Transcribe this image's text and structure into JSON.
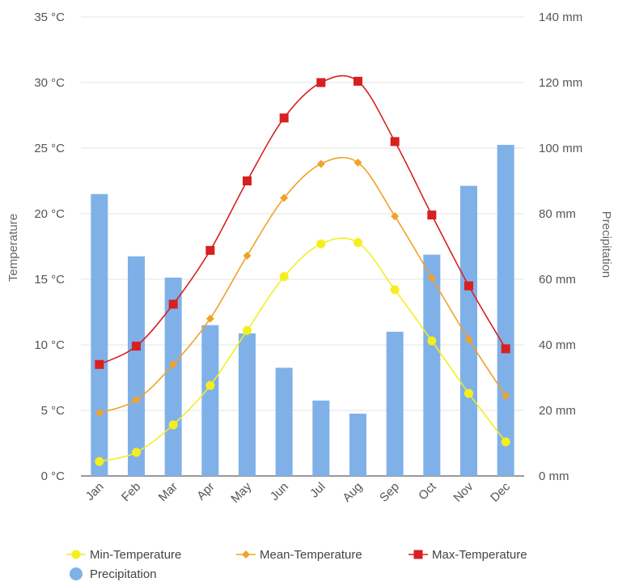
{
  "chart_data": {
    "type": "bar+line",
    "categories": [
      "Jan",
      "Feb",
      "Mar",
      "Apr",
      "May",
      "Jun",
      "Jul",
      "Aug",
      "Sep",
      "Oct",
      "Nov",
      "Dec"
    ],
    "y_left": {
      "label": "Temperature",
      "unit": "°C",
      "range": [
        0,
        35
      ],
      "ticks": [
        0,
        5,
        10,
        15,
        20,
        25,
        30,
        35
      ],
      "tick_labels": [
        "0 °C",
        "5 °C",
        "10 °C",
        "15 °C",
        "20 °C",
        "25 °C",
        "30 °C",
        "35 °C"
      ]
    },
    "y_right": {
      "label": "Precipitation",
      "unit": "mm",
      "range": [
        0,
        140
      ],
      "ticks": [
        0,
        20,
        40,
        60,
        80,
        100,
        120,
        140
      ],
      "tick_labels": [
        "0 mm",
        "20 mm",
        "40 mm",
        "60 mm",
        "80 mm",
        "100 mm",
        "120 mm",
        "140 mm"
      ]
    },
    "grid": true,
    "legend_position": "bottom",
    "series": [
      {
        "name": "Min-Temperature",
        "type": "line",
        "axis": "left",
        "marker": "circle",
        "color": "#f5ee1f",
        "values": [
          1.1,
          1.8,
          3.9,
          6.9,
          11.1,
          15.2,
          17.7,
          17.8,
          14.2,
          10.3,
          6.3,
          2.6
        ]
      },
      {
        "name": "Mean-Temperature",
        "type": "line",
        "axis": "left",
        "marker": "diamond",
        "color": "#f0a22a",
        "values": [
          4.8,
          5.8,
          8.5,
          12.0,
          16.8,
          21.2,
          23.8,
          23.9,
          19.8,
          15.1,
          10.4,
          6.1
        ]
      },
      {
        "name": "Max-Temperature",
        "type": "line",
        "axis": "left",
        "marker": "square",
        "color": "#d82020",
        "values": [
          8.5,
          9.9,
          13.1,
          17.2,
          22.5,
          27.3,
          30.0,
          30.1,
          25.5,
          19.9,
          14.5,
          9.7
        ]
      },
      {
        "name": "Precipitation",
        "type": "bar",
        "axis": "right",
        "color": "#7fb1e8",
        "values": [
          86,
          67,
          60.5,
          46,
          43.5,
          33,
          23,
          19,
          44,
          67.5,
          88.5,
          101
        ]
      }
    ]
  }
}
